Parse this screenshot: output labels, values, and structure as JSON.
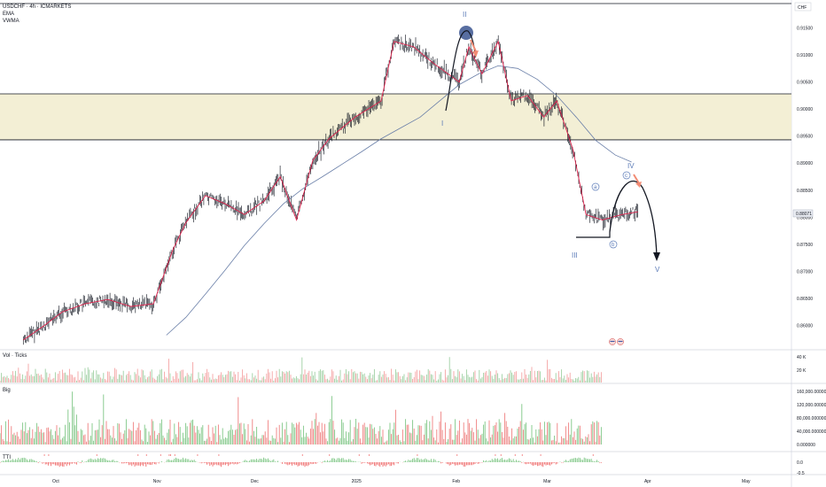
{
  "header": {
    "symbol_line": "USDCHF · 4h · ICMARKETS",
    "indicators": [
      "EMA",
      "VWMA"
    ]
  },
  "currency_badge": "CHF",
  "colors": {
    "candle": "#131722",
    "ema": "#e0234d",
    "vwma": "#6a7fa8",
    "zone_fill": "#f3efd5",
    "zone_border": "#131722",
    "wave_blue": "#5b7bb8",
    "circle_fill": "#2e4a8a",
    "arrow_orange": "#f28b74",
    "vol_up": "#9fd0a3",
    "vol_down": "#f4a3a3",
    "big_up": "#7fc786",
    "big_down": "#ef8080",
    "tti_up": "#7fc786",
    "tti_down": "#ef6b6b",
    "tti_dot": "#ef4b4b"
  },
  "chart_data": [
    {
      "type": "line",
      "title": "USDCHF · 4h · ICMARKETS",
      "y_axis_currency": "CHF",
      "ylim": [
        0.8555,
        0.9195
      ],
      "y_ticks": [
        "0.91500",
        "0.91000",
        "0.90500",
        "0.90000",
        "0.89500",
        "0.89000",
        "0.88500",
        "0.88000",
        "0.87500",
        "0.87000",
        "0.86500",
        "0.86000"
      ],
      "y_tick_values": [
        0.915,
        0.91,
        0.905,
        0.9,
        0.895,
        0.89,
        0.885,
        0.88,
        0.875,
        0.87,
        0.865,
        0.86
      ],
      "x_ticks": [
        "Oct",
        "Nov",
        "Dec",
        "2025",
        "Feb",
        "Mar",
        "Apr",
        "May"
      ],
      "x_tick_dates": [
        "2024-10-01",
        "2024-11-01",
        "2024-12-01",
        "2025-01-01",
        "2025-02-01",
        "2025-03-01",
        "2025-04-01",
        "2025-05-01"
      ],
      "last_price": "0.88071",
      "series": [
        {
          "name": "EMA",
          "x": [
            "2024-09-21",
            "2024-09-27",
            "2024-10-03",
            "2024-10-10",
            "2024-10-17",
            "2024-10-24",
            "2024-10-31",
            "2024-11-06",
            "2024-11-10",
            "2024-11-16",
            "2024-11-22",
            "2024-11-28",
            "2024-12-04",
            "2024-12-09",
            "2024-12-14",
            "2024-12-19",
            "2024-12-24",
            "2025-01-01",
            "2025-01-09",
            "2025-01-13",
            "2025-01-19",
            "2025-01-25",
            "2025-02-02",
            "2025-02-05",
            "2025-02-09",
            "2025-02-14",
            "2025-02-18",
            "2025-02-23",
            "2025-02-28",
            "2025-03-04",
            "2025-03-09",
            "2025-03-13",
            "2025-03-18",
            "2025-03-24",
            "2025-03-29"
          ],
          "y": [
            0.8573,
            0.8598,
            0.8625,
            0.864,
            0.8648,
            0.8635,
            0.864,
            0.874,
            0.879,
            0.884,
            0.8825,
            0.8805,
            0.883,
            0.8875,
            0.8795,
            0.8905,
            0.8945,
            0.8985,
            0.9015,
            0.9125,
            0.9115,
            0.9085,
            0.905,
            0.9115,
            0.9065,
            0.9125,
            0.9015,
            0.9025,
            0.8985,
            0.9015,
            0.8925,
            0.8805,
            0.8795,
            0.8805,
            0.881
          ]
        },
        {
          "name": "VWMA",
          "x": [
            "2024-11-04",
            "2024-11-10",
            "2024-11-16",
            "2024-11-22",
            "2024-11-28",
            "2024-12-04",
            "2024-12-10",
            "2024-12-16",
            "2024-12-22",
            "2024-12-28",
            "2025-01-03",
            "2025-01-09",
            "2025-01-15",
            "2025-01-21",
            "2025-01-27",
            "2025-02-02",
            "2025-02-08",
            "2025-02-14",
            "2025-02-20",
            "2025-02-26",
            "2025-03-04",
            "2025-03-10",
            "2025-03-16",
            "2025-03-22",
            "2025-03-27"
          ],
          "y": [
            0.8582,
            0.8615,
            0.8658,
            0.8702,
            0.8748,
            0.8788,
            0.8825,
            0.8853,
            0.8875,
            0.8898,
            0.8921,
            0.8945,
            0.8965,
            0.8985,
            0.9015,
            0.9045,
            0.9065,
            0.908,
            0.9075,
            0.9055,
            0.9025,
            0.8985,
            0.8942,
            0.8915,
            0.8902
          ]
        }
      ],
      "zone": {
        "from": 0.8943,
        "to": 0.9028
      },
      "annotations": [
        {
          "text": "II",
          "x": "2025-02-10",
          "y": 0.918
        },
        {
          "text": "I",
          "x": "2025-02-02",
          "y": 0.8993
        },
        {
          "text": "III",
          "x": "2025-03-17",
          "y": 0.8755
        },
        {
          "text": "IV",
          "x": "2025-04-02",
          "y": 0.8903
        },
        {
          "text": "V",
          "x": "2025-04-15",
          "y": 0.8735
        },
        {
          "text": "a",
          "x": "2025-03-26",
          "y": 0.8854
        },
        {
          "text": "b",
          "x": "2025-03-30",
          "y": 0.8768
        },
        {
          "text": "c",
          "x": "2025-04-02",
          "y": 0.8885
        }
      ],
      "grid": false
    },
    {
      "type": "bar",
      "title": "Vol · Ticks",
      "y_ticks": [
        "40 K",
        "20 K"
      ],
      "y_tick_values": [
        40000,
        20000
      ],
      "series": [
        {
          "name": "Vol · Ticks"
        }
      ]
    },
    {
      "type": "bar",
      "title": "Big",
      "y_ticks": [
        "160,000.000000",
        "120,000.000000",
        "80,000.000000",
        "40,000.000000",
        "0.000000"
      ],
      "y_tick_values": [
        160000,
        120000,
        80000,
        40000,
        0
      ],
      "series": [
        {
          "name": "Big"
        }
      ]
    },
    {
      "type": "bar",
      "title": "TTI",
      "y_ticks": [
        "0.0",
        "-0.5"
      ],
      "y_tick_values": [
        0,
        -0.5
      ],
      "series": [
        {
          "name": "TTI"
        }
      ]
    }
  ]
}
